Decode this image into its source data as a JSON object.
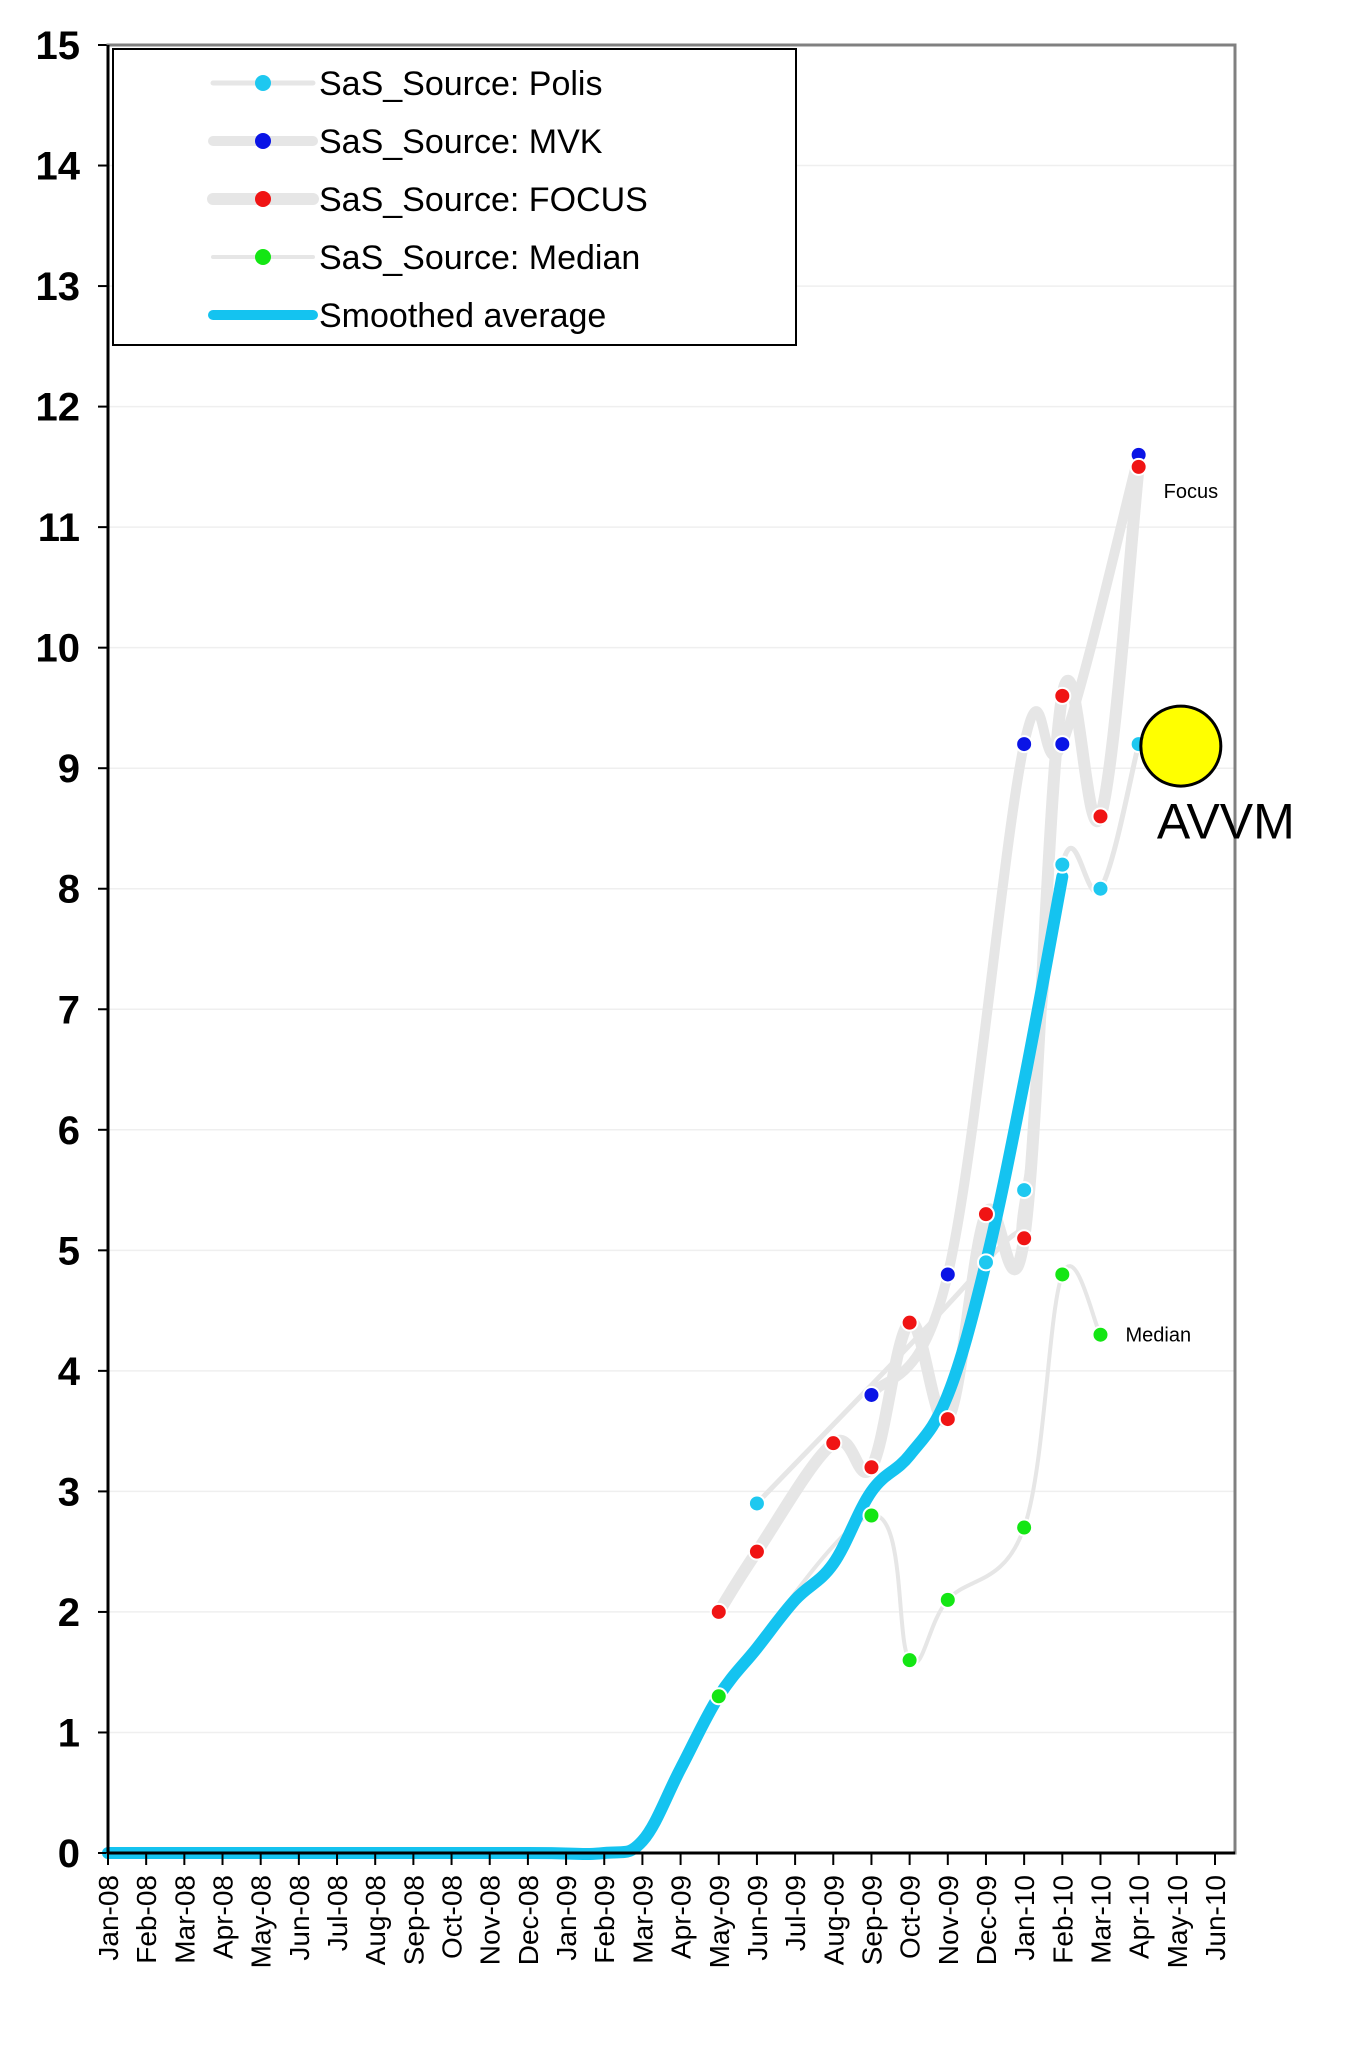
{
  "chart_data": {
    "type": "line",
    "title": "",
    "xlabel": "",
    "ylabel": "",
    "ylim": [
      0,
      15
    ],
    "yticks": [
      "0",
      "1",
      "2",
      "3",
      "4",
      "5",
      "6",
      "7",
      "8",
      "9",
      "10",
      "11",
      "12",
      "13",
      "14",
      "15"
    ],
    "xticks": [
      "Jan-08",
      "Feb-08",
      "Mar-08",
      "Apr-08",
      "May-08",
      "Jun-08",
      "Jul-08",
      "Aug-08",
      "Sep-08",
      "Oct-08",
      "Nov-08",
      "Dec-08",
      "Jan-09",
      "Feb-09",
      "Mar-09",
      "Apr-09",
      "May-09",
      "Jun-09",
      "Jul-09",
      "Aug-09",
      "Sep-09",
      "Oct-09",
      "Nov-09",
      "Dec-09",
      "Jan-10",
      "Feb-10",
      "Mar-10",
      "Apr-10",
      "May-10",
      "Jun-10"
    ],
    "grid": "horizontal",
    "legend_position": "top-left",
    "series": [
      {
        "name": "SaS_Source: Polis",
        "marker_color": "#1ec8f0",
        "line_color": "#e6e6e6",
        "points": [
          {
            "x": "Jun-09",
            "y": 2.9
          },
          {
            "x": "Dec-09",
            "y": 4.9
          },
          {
            "x": "Jan-10",
            "y": 5.5
          },
          {
            "x": "Feb-10",
            "y": 8.2
          },
          {
            "x": "Mar-10",
            "y": 8.0
          },
          {
            "x": "Apr-10",
            "y": 9.2
          }
        ]
      },
      {
        "name": "SaS_Source: MVK",
        "marker_color": "#0a14e6",
        "line_color": "#e6e6e6",
        "points": [
          {
            "x": "Sep-09",
            "y": 3.8
          },
          {
            "x": "Nov-09",
            "y": 4.8
          },
          {
            "x": "Jan-10",
            "y": 9.2
          },
          {
            "x": "Feb-10",
            "y": 9.2
          },
          {
            "x": "Apr-10",
            "y": 11.6
          }
        ]
      },
      {
        "name": "SaS_Source: FOCUS",
        "marker_color": "#f01414",
        "line_color": "#e6e6e6",
        "points": [
          {
            "x": "May-09",
            "y": 2.0
          },
          {
            "x": "Jun-09",
            "y": 2.5
          },
          {
            "x": "Aug-09",
            "y": 3.4
          },
          {
            "x": "Sep-09",
            "y": 3.2
          },
          {
            "x": "Oct-09",
            "y": 4.4
          },
          {
            "x": "Nov-09",
            "y": 3.6
          },
          {
            "x": "Dec-09",
            "y": 5.3
          },
          {
            "x": "Jan-10",
            "y": 5.1
          },
          {
            "x": "Feb-10",
            "y": 9.6
          },
          {
            "x": "Mar-10",
            "y": 8.6
          },
          {
            "x": "Apr-10",
            "y": 11.5
          }
        ]
      },
      {
        "name": "SaS_Source: Median",
        "marker_color": "#14e614",
        "line_color": "#e6e6e6",
        "points": [
          {
            "x": "May-09",
            "y": 1.3
          },
          {
            "x": "Sep-09",
            "y": 2.8
          },
          {
            "x": "Oct-09",
            "y": 1.6
          },
          {
            "x": "Nov-09",
            "y": 2.1
          },
          {
            "x": "Jan-10",
            "y": 2.7
          },
          {
            "x": "Feb-10",
            "y": 4.8
          },
          {
            "x": "Mar-10",
            "y": 4.3
          }
        ]
      },
      {
        "name": "Smoothed average",
        "line_color": "#14c3f0",
        "points": [
          {
            "x": "Jan-08",
            "y": 0
          },
          {
            "x": "Jun-08",
            "y": 0
          },
          {
            "x": "Dec-08",
            "y": 0
          },
          {
            "x": "Feb-09",
            "y": 0
          },
          {
            "x": "Mar-09",
            "y": 0.1
          },
          {
            "x": "Apr-09",
            "y": 0.7
          },
          {
            "x": "May-09",
            "y": 1.3
          },
          {
            "x": "Jun-09",
            "y": 1.7
          },
          {
            "x": "Jul-09",
            "y": 2.1
          },
          {
            "x": "Aug-09",
            "y": 2.4
          },
          {
            "x": "Sep-09",
            "y": 3.0
          },
          {
            "x": "Oct-09",
            "y": 3.3
          },
          {
            "x": "Nov-09",
            "y": 3.8
          },
          {
            "x": "Dec-09",
            "y": 4.9
          },
          {
            "x": "Jan-10",
            "y": 6.4
          },
          {
            "x": "Feb-10",
            "y": 8.1
          }
        ]
      }
    ],
    "annotations": [
      {
        "text": "Focus",
        "x": "Apr-10",
        "y": 11.3,
        "size": "small"
      },
      {
        "text": "Median",
        "x": "Mar-10",
        "y": 4.3,
        "size": "small"
      },
      {
        "text": "AVVM",
        "x": "May-10",
        "y": 8.5,
        "size": "large"
      }
    ],
    "highlight_marker": {
      "name": "AVVM",
      "x": "May-10",
      "y": 9.2,
      "color": "#ffff00"
    }
  }
}
